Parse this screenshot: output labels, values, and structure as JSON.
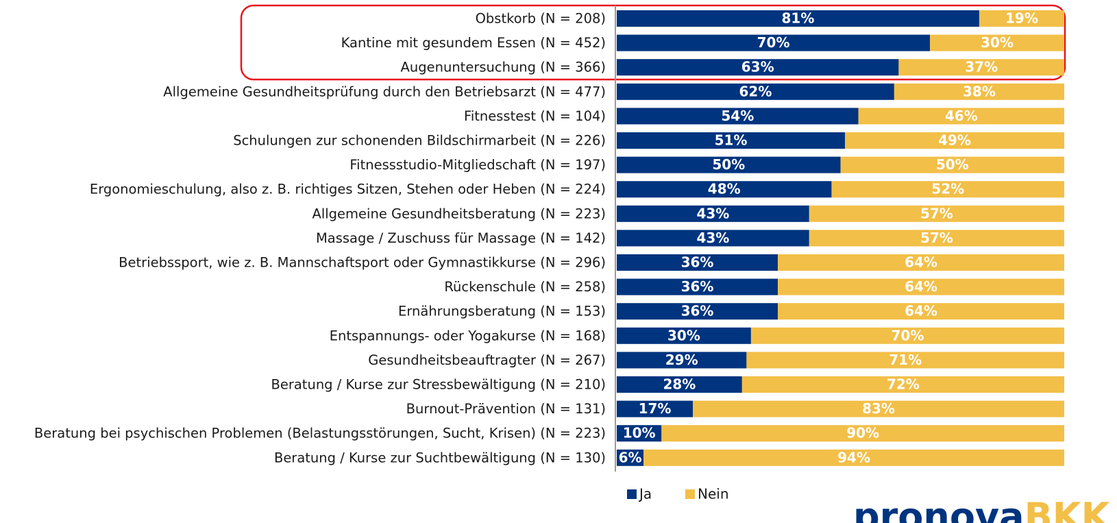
{
  "chart_data": {
    "type": "stacked-bar-horizontal",
    "categories": [
      "Obstkorb (N = 208)",
      "Kantine mit gesundem Essen (N = 452)",
      "Augenuntersuchung (N = 366)",
      "Allgemeine Gesundheitsprüfung durch den Betriebsarzt (N = 477)",
      "Fitnesstest (N = 104)",
      "Schulungen zur schonenden Bildschirmarbeit (N = 226)",
      "Fitnessstudio-Mitgliedschaft (N = 197)",
      "Ergonomieschulung, also z. B. richtiges Sitzen, Stehen oder Heben (N = 224)",
      "Allgemeine Gesundheitsberatung (N = 223)",
      "Massage / Zuschuss für Massage (N = 142)",
      "Betriebssport, wie z. B. Mannschaftsport oder Gymnastikkurse (N = 296)",
      "Rückenschule (N = 258)",
      "Ernährungsberatung (N = 153)",
      "Entspannungs- oder Yogakurse (N = 168)",
      "Gesundheitsbeauftragter (N = 267)",
      "Beratung / Kurse zur Stressbewältigung (N = 210)",
      "Burnout-Prävention (N = 131)",
      "Beratung bei psychischen Problemen (Belastungsstörungen, Sucht, Krisen) (N = 223)",
      "Beratung / Kurse zur Suchtbewältigung (N = 130)"
    ],
    "series": [
      {
        "name": "Ja",
        "color": "#00347f",
        "values": [
          81,
          70,
          63,
          62,
          54,
          51,
          50,
          48,
          43,
          43,
          36,
          36,
          36,
          30,
          29,
          28,
          17,
          10,
          6
        ],
        "value_labels": [
          "81%",
          "70%",
          "63%",
          "62%",
          "54%",
          "51%",
          "50%",
          "48%",
          "43%",
          "43%",
          "36%",
          "36%",
          "36%",
          "30%",
          "29%",
          "28%",
          "17%",
          "10%",
          "6%"
        ]
      },
      {
        "name": "Nein",
        "color": "#f2bf48",
        "values": [
          19,
          30,
          37,
          38,
          46,
          49,
          50,
          52,
          57,
          57,
          64,
          64,
          64,
          70,
          71,
          72,
          83,
          90,
          94
        ],
        "value_labels": [
          "19%",
          "30%",
          "37%",
          "38%",
          "46%",
          "49%",
          "50%",
          "52%",
          "57%",
          "57%",
          "64%",
          "64%",
          "64%",
          "70%",
          "71%",
          "72%",
          "83%",
          "90%",
          "94%"
        ]
      }
    ],
    "xlim": [
      0,
      100
    ],
    "legend": "bottom",
    "logo": {
      "part1": "pronova",
      "part2": "BKK"
    }
  }
}
